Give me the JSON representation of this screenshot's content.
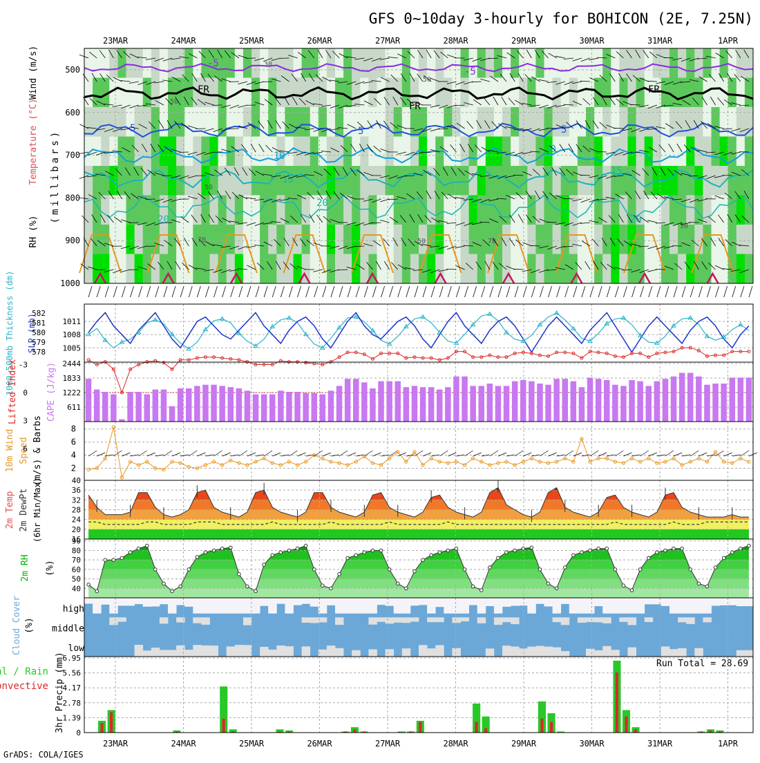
{
  "title": "GFS 0~10day 3-hourly for BOHICON (2E, 7.25N)",
  "footer": "GrADS: COLA/IGES",
  "dates": [
    "23MAR",
    "24MAR",
    "25MAR",
    "26MAR",
    "27MAR",
    "28MAR",
    "29MAR",
    "30MAR",
    "31MAR",
    "1APR"
  ],
  "colors": {
    "rh_light": "#e8f5e8",
    "rh_mid": "#c8d8c8",
    "rh_green": "#5cc85c",
    "rh_bright": "#00e000",
    "temp_purple": "#8a2be2",
    "temp_fr": "#000000",
    "temp_blue": "#1e50dc",
    "temp_cyan": "#10a0dc",
    "temp_teal": "#18b4b4",
    "temp_orange": "#e8961e",
    "temp_magenta": "#c81464",
    "slp": "#1e32c8",
    "thickness": "#28b4c8",
    "cape": "#c878f0",
    "lifted": "#dc2828",
    "wind10m": "#e8961e",
    "rh2m": "#00b400",
    "cloud": "#6ba8d8",
    "cloud_gap": "#e0e0e0",
    "precip_total": "#28c828",
    "precip_conv": "#dc2828"
  },
  "panels": {
    "upper": {
      "ylabel_rh": "RH (%)",
      "ylabel_temp": "Temperature (°C)",
      "ylabel_wind": "Wind (m/s)",
      "ylabel_mb": "(millibars)",
      "yticks": [
        "500",
        "600",
        "700",
        "800",
        "900",
        "1000"
      ],
      "contour_labels": [
        "-5",
        "-5",
        "FR",
        "FR",
        "FR",
        "5",
        "5",
        "5",
        "10",
        "10",
        "15",
        "15",
        "20",
        "20",
        "20",
        "50",
        "50",
        "50",
        "30",
        "50",
        "50",
        "70",
        "70"
      ]
    },
    "slp": {
      "ylabel_thick": "1000-500mb Thickness (dm)",
      "ylabel_slp": "SLP (mb)",
      "thick_ticks": [
        "582",
        "581",
        "580",
        "579",
        "578"
      ],
      "slp_ticks": [
        "1011",
        "1008",
        "1005"
      ]
    },
    "cape": {
      "ylabel_li": "Lifted Index",
      "ylabel_cape": "CAPE (J/kg)",
      "li_ticks": [
        "-3",
        "0",
        "3",
        "6"
      ],
      "cape_ticks": [
        "2444",
        "1833",
        "1222",
        "611"
      ]
    },
    "wind": {
      "ylabel1": "10m Wind",
      "ylabel2": "Speed",
      "ylabel3": "(m/s) & Barbs",
      "ticks": [
        "8",
        "6",
        "4",
        "2"
      ]
    },
    "temp": {
      "ylabel1": "2m Temp",
      "ylabel2": "2m DewPt",
      "ylabel3": "(6hr Min/Max)",
      "ticks": [
        "40",
        "36",
        "32",
        "28",
        "24",
        "20",
        "16"
      ]
    },
    "rh": {
      "ylabel1": "2m RH",
      "ylabel2": "(%)",
      "ticks": [
        "90",
        "80",
        "70",
        "60",
        "50",
        "40"
      ]
    },
    "cloud": {
      "ylabel1": "Cloud Cover",
      "ylabel2": "(%)",
      "levels": [
        "high",
        "middle",
        "low"
      ]
    },
    "precip": {
      "ylabel1": "Total / Rain",
      "ylabel2": "Convective",
      "ylabel3": "3hr Precip (mm)",
      "ticks": [
        "6.95",
        "5.56",
        "4.17",
        "2.78",
        "1.39",
        "0"
      ],
      "run_total": "Run Total = 28.69"
    }
  },
  "chart_data": [
    {
      "type": "line",
      "name": "slp",
      "x_start": "2023-03-22T12Z",
      "step_hours": 3,
      "series": [
        {
          "name": "SLP (mb)",
          "values": [
            1008.5,
            1011,
            1013,
            1010,
            1008,
            1006,
            1009,
            1011,
            1013,
            1010,
            1007,
            1005,
            1008,
            1011,
            1012,
            1010,
            1008,
            1007,
            1009,
            1011,
            1013,
            1010,
            1008,
            1006,
            1009,
            1011,
            1012,
            1010,
            1007,
            1005,
            1008,
            1011,
            1013,
            1010,
            1008,
            1007,
            1009,
            1011,
            1012,
            1010,
            1007,
            1005,
            1008,
            1011,
            1013,
            1010,
            1008,
            1006,
            1009,
            1011,
            1012,
            1010,
            1007,
            1004,
            1007,
            1010,
            1012,
            1010,
            1008,
            1006,
            1009,
            1011,
            1013,
            1010,
            1007,
            1004,
            1007,
            1010,
            1012,
            1010,
            1008,
            1006,
            1009,
            1011,
            1012,
            1010,
            1007,
            1005,
            1008,
            1010
          ]
        },
        {
          "name": "1000-500mb Thickness (dm)",
          "values": [
            579.8,
            580.4,
            579.2,
            578.4,
            579.0,
            579.3,
            580.0,
            581.0,
            581.3,
            580.9,
            579.8,
            578.9,
            578.3,
            579.0,
            580.3,
            581.2,
            581.4,
            581.0,
            579.9,
            579.1,
            578.6,
            579.3,
            580.6,
            581.3,
            581.5,
            581.0,
            579.8,
            578.8,
            578.4,
            579.4,
            580.5,
            581.5,
            581.6,
            581.1,
            580.2,
            579.2,
            578.8,
            579.6,
            580.6,
            581.4,
            581.6,
            581.0,
            580.0,
            579.1,
            578.9,
            579.8,
            580.8,
            581.7,
            581.9,
            581.2,
            580.0,
            579.3,
            579.1,
            579.7,
            580.8,
            581.6,
            582.0,
            581.3,
            580.4,
            579.4,
            579.1,
            579.9,
            580.9,
            581.4,
            581.5,
            580.8,
            579.7,
            579.0,
            578.9,
            579.6,
            580.7,
            581.4,
            581.5,
            580.8,
            579.6,
            579.2,
            579.5,
            580.3,
            580.8,
            580.2
          ]
        }
      ]
    },
    {
      "type": "bar",
      "name": "cape_lifted_index",
      "series": [
        {
          "name": "CAPE (J/kg)",
          "values": [
            1800,
            1350,
            1250,
            1150,
            100,
            1250,
            1250,
            1150,
            1350,
            1350,
            650,
            1400,
            1400,
            1500,
            1550,
            1550,
            1500,
            1450,
            1400,
            1300,
            1150,
            1150,
            1150,
            1300,
            1250,
            1250,
            1200,
            1200,
            1150,
            1300,
            1500,
            1800,
            1800,
            1650,
            1400,
            1700,
            1700,
            1700,
            1450,
            1500,
            1450,
            1450,
            1350,
            1450,
            1900,
            1900,
            1500,
            1500,
            1600,
            1500,
            1500,
            1700,
            1750,
            1700,
            1600,
            1550,
            1800,
            1800,
            1700,
            1450,
            1850,
            1800,
            1750,
            1550,
            1500,
            1750,
            1700,
            1500,
            1700,
            1800,
            1900,
            2050,
            2050,
            1900,
            1550,
            1600,
            1600,
            1850,
            1850,
            1850
          ]
        },
        {
          "name": "Lifted Index",
          "values": [
            -3.5,
            -3,
            -3.3,
            -2.5,
            0,
            -2.5,
            -3,
            -3.3,
            -3.4,
            -3.2,
            -2.5,
            -3.5,
            -3.5,
            -3.7,
            -3.8,
            -3.8,
            -3.7,
            -3.6,
            -3.5,
            -3.3,
            -3.0,
            -3.0,
            -3.0,
            -3.4,
            -3.3,
            -3.3,
            -3.2,
            -3.1,
            -3.0,
            -3.3,
            -3.8,
            -4.3,
            -4.3,
            -4.1,
            -3.6,
            -4.2,
            -4.2,
            -4.2,
            -3.7,
            -3.8,
            -3.7,
            -3.7,
            -3.5,
            -3.7,
            -4.4,
            -4.4,
            -3.8,
            -3.8,
            -4.0,
            -3.8,
            -3.8,
            -4.2,
            -4.3,
            -4.2,
            -4.0,
            -3.9,
            -4.3,
            -4.3,
            -4.2,
            -3.7,
            -4.4,
            -4.3,
            -4.2,
            -3.9,
            -3.8,
            -4.2,
            -4.2,
            -3.8,
            -4.2,
            -4.3,
            -4.4,
            -4.8,
            -4.8,
            -4.5,
            -3.9,
            -4.0,
            -4.0,
            -4.4,
            -4.4,
            -4.4
          ]
        }
      ]
    },
    {
      "type": "line",
      "name": "wind10m",
      "series": [
        {
          "name": "10m Wind Speed (m/s)",
          "values": [
            1.8,
            2,
            3.5,
            8.3,
            0.6,
            3,
            2.5,
            3,
            2,
            1.8,
            3,
            2.8,
            2.2,
            2,
            2.5,
            3,
            2.5,
            3.2,
            2.8,
            2.5,
            3,
            3.5,
            2.8,
            2.5,
            3,
            2.5,
            3,
            4,
            3.5,
            3,
            2.8,
            2.5,
            3,
            3.8,
            2.8,
            2.5,
            3.5,
            4.5,
            3,
            4.5,
            2.5,
            3.5,
            3,
            2.8,
            3,
            2.5,
            3.5,
            3,
            2.5,
            2.8,
            3,
            2.5,
            3,
            3.5,
            3,
            2.8,
            3,
            3.5,
            3,
            6.5,
            3,
            3.5,
            3.5,
            3,
            2.8,
            3.5,
            3,
            3.5,
            2.8,
            3,
            3.5,
            2.5,
            3,
            3.5,
            3,
            4.5,
            3,
            2.8,
            3.5,
            3
          ]
        }
      ]
    },
    {
      "type": "area",
      "name": "temp2m",
      "series": [
        {
          "name": "2m Temp (°C)",
          "values": [
            34,
            29,
            26,
            26,
            26,
            27,
            35,
            35,
            29,
            26,
            25,
            26,
            28,
            35,
            36,
            29,
            27,
            26,
            25,
            27,
            35,
            36,
            29,
            27,
            26,
            25,
            27,
            35,
            35,
            29,
            27,
            26,
            25,
            27,
            34,
            35,
            29,
            27,
            26,
            25,
            27,
            33,
            34,
            29,
            27,
            26,
            25,
            27,
            35,
            37,
            30,
            28,
            26,
            25,
            27,
            35,
            37,
            29,
            27,
            26,
            25,
            27,
            33,
            34,
            29,
            27,
            26,
            25,
            27,
            34,
            35,
            29,
            27,
            26,
            25,
            25,
            25,
            26,
            25,
            25
          ]
        },
        {
          "name": "2m DewPt (°C)",
          "values": [
            23,
            23,
            22,
            22,
            22,
            22,
            22,
            23,
            23,
            22,
            22,
            22,
            22,
            23,
            23,
            23,
            22,
            22,
            22,
            22,
            22,
            22,
            23,
            22,
            22,
            22,
            22,
            22,
            22,
            23,
            22,
            22,
            22,
            22,
            22,
            22,
            23,
            22,
            22,
            22,
            22,
            22,
            22,
            23,
            22,
            22,
            22,
            22,
            22,
            22,
            22,
            22,
            22,
            22,
            22,
            22,
            22,
            22,
            22,
            22,
            22,
            22,
            22,
            23,
            22,
            22,
            22,
            22,
            22,
            22,
            23,
            22,
            22,
            22,
            23,
            23,
            23,
            23,
            23,
            23
          ]
        }
      ]
    },
    {
      "type": "area",
      "name": "rh2m",
      "series": [
        {
          "name": "2m RH (%)",
          "values": [
            44,
            37,
            70,
            70,
            72,
            78,
            82,
            85,
            60,
            45,
            37,
            42,
            60,
            73,
            78,
            80,
            82,
            83,
            55,
            42,
            37,
            65,
            75,
            78,
            80,
            82,
            85,
            60,
            43,
            40,
            55,
            72,
            75,
            78,
            80,
            80,
            60,
            45,
            40,
            58,
            70,
            75,
            78,
            80,
            82,
            60,
            42,
            38,
            62,
            72,
            78,
            80,
            82,
            83,
            60,
            45,
            40,
            62,
            75,
            78,
            80,
            82,
            82,
            60,
            43,
            38,
            60,
            72,
            78,
            80,
            82,
            82,
            60,
            45,
            42,
            62,
            72,
            78,
            82,
            85
          ]
        }
      ]
    },
    {
      "type": "bar",
      "name": "precip3hr",
      "series": [
        {
          "name": "Total / Rain",
          "values": [
            1.1,
            2.1,
            0,
            0,
            0,
            0,
            0,
            0,
            0.2,
            0,
            0,
            0,
            0,
            4.3,
            0.3,
            0,
            0,
            0,
            0,
            0.3,
            0.2,
            0,
            0,
            0,
            0,
            0,
            0.1,
            0.5,
            0.1,
            0,
            0,
            0,
            0.1,
            0.1,
            1.1,
            0,
            0,
            0,
            0,
            0,
            2.7,
            1.5,
            0,
            0,
            0,
            0,
            0,
            2.9,
            1.8,
            0.1,
            0,
            0,
            0,
            0,
            0,
            6.7,
            2.1,
            0.5,
            0,
            0,
            0,
            0,
            0,
            0,
            0.1,
            0.3,
            0.2,
            0,
            0,
            0
          ]
        },
        {
          "name": "Convective",
          "values": [
            0.9,
            1.9,
            0,
            0,
            0,
            0,
            0,
            0,
            0.1,
            0,
            0,
            0,
            0,
            1.3,
            0.1,
            0,
            0,
            0,
            0,
            0.1,
            0.1,
            0,
            0,
            0,
            0,
            0,
            0.1,
            0.3,
            0.1,
            0,
            0,
            0,
            0,
            0.1,
            1,
            0,
            0,
            0,
            0,
            0,
            1,
            0.4,
            0,
            0,
            0,
            0,
            0,
            1.3,
            1,
            0,
            0,
            0,
            0,
            0,
            0,
            5.6,
            1.5,
            0.3,
            0,
            0,
            0,
            0,
            0,
            0,
            0.1,
            0.2,
            0.1,
            0,
            0,
            0
          ]
        }
      ],
      "ylim": [
        0,
        6.95
      ]
    }
  ]
}
